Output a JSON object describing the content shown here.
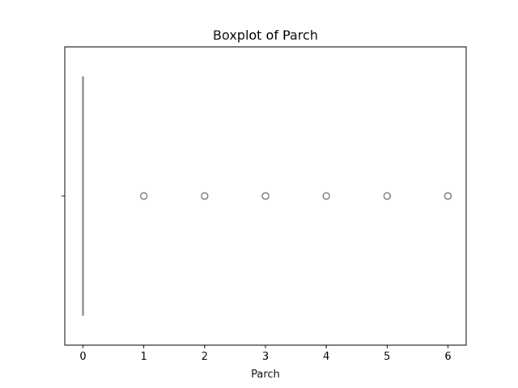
{
  "chart_data": {
    "type": "box",
    "title": "Boxplot of Parch",
    "xlabel": "Parch",
    "ylabel": "",
    "orientation": "horizontal",
    "xlim": [
      -0.3,
      6.3
    ],
    "xticks": [
      0,
      1,
      2,
      3,
      4,
      5,
      6
    ],
    "xtick_labels": [
      "0",
      "1",
      "2",
      "3",
      "4",
      "5",
      "6"
    ],
    "yticks": [
      ""
    ],
    "grid": false,
    "box_color": "#808080",
    "series": [
      {
        "min": 0,
        "q1": 0,
        "median": 0,
        "q3": 0,
        "max": 0,
        "outliers": [
          1,
          2,
          3,
          4,
          5,
          6
        ]
      }
    ]
  }
}
